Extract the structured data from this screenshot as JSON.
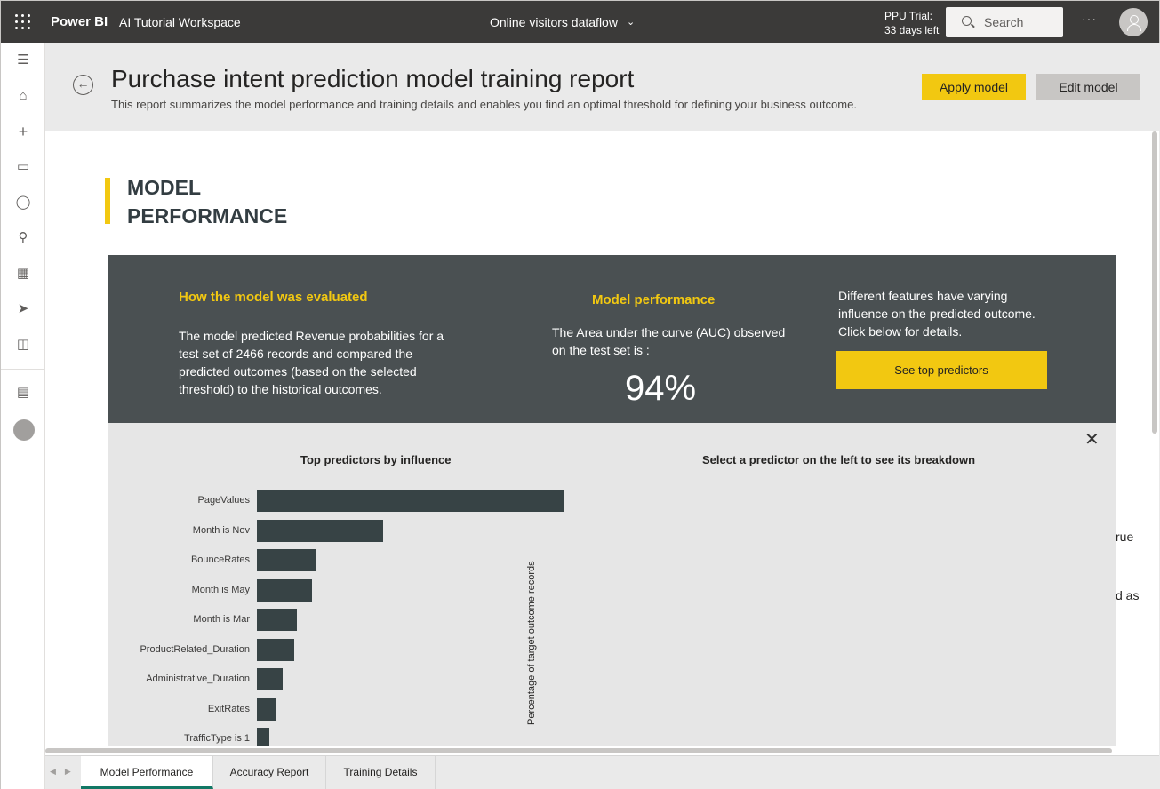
{
  "topbar": {
    "brand": "Power BI",
    "workspace": "AI Tutorial Workspace",
    "dataflow": "Online visitors dataflow",
    "trial_line1": "PPU Trial:",
    "trial_line2": "33 days left",
    "search_placeholder": "Search",
    "more": "···"
  },
  "leftnav": {
    "icons": [
      "hamburger-icon",
      "home-icon",
      "create-icon",
      "browse-icon",
      "datahub-icon",
      "goals-icon",
      "apps-icon",
      "learn-icon",
      "book-icon",
      "workspaces-icon",
      "workspace-avatar-icon"
    ]
  },
  "header": {
    "title": "Purchase intent prediction model training report",
    "subtitle": "This report summarizes the model performance and training details and enables you find an optimal threshold for defining your business outcome.",
    "apply_label": "Apply model",
    "edit_label": "Edit model"
  },
  "report": {
    "section_title_1": "MODEL",
    "section_title_2": "PERFORMANCE",
    "eval_heading": "How the model was evaluated",
    "eval_text": "The model predicted Revenue probabilities for a test set of 2466 records and compared the predicted outcomes (based on the selected threshold) to the historical outcomes.",
    "perf_heading": "Model performance",
    "perf_text": "The Area under the curve (AUC) observed on the test set is :",
    "auc_value": "94%",
    "features_text": "Different features have varying influence on the predicted outcome.  Click below for details.",
    "top_predictors_button": "See top predictors",
    "left_chart_title": "Top predictors by influence",
    "right_chart_title": "Select a predictor on the left to see its breakdown",
    "right_axis_label": "Percentage of target outcome records",
    "edge_text_1": "rue",
    "edge_text_2": "d as"
  },
  "chart_data": {
    "type": "bar",
    "orientation": "horizontal",
    "title": "Top predictors by influence",
    "categories": [
      "PageValues",
      "Month is Nov",
      "BounceRates",
      "Month is May",
      "Month is Mar",
      "ProductRelated_Duration",
      "Administrative_Duration",
      "ExitRates",
      "TrafficType is 1"
    ],
    "values": [
      1.0,
      0.41,
      0.19,
      0.18,
      0.13,
      0.12,
      0.085,
      0.06,
      0.04
    ],
    "xlabel": "",
    "ylabel": ""
  },
  "tabs": [
    "Model Performance",
    "Accuracy Report",
    "Training Details"
  ]
}
